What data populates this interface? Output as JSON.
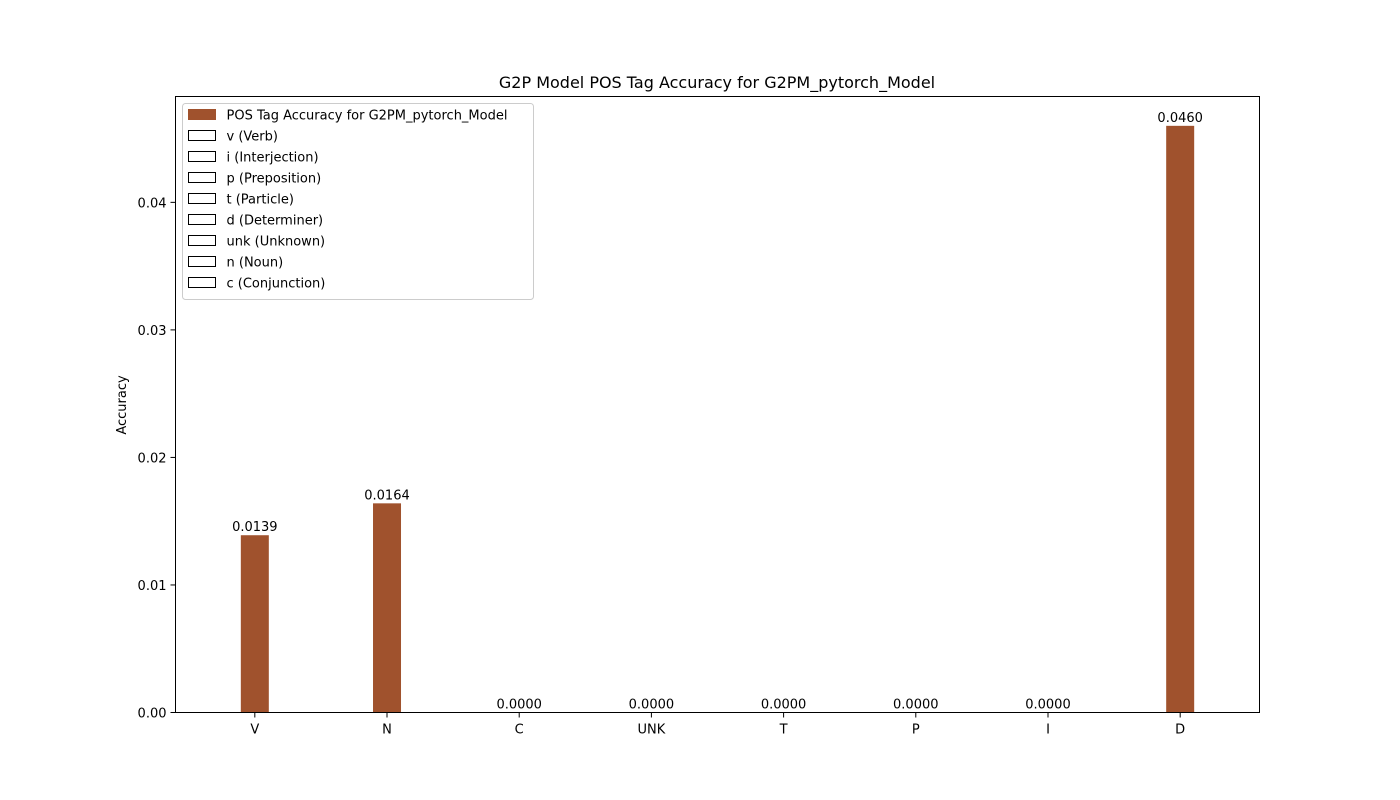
{
  "chart_data": {
    "type": "bar",
    "title": "G2P Model POS Tag Accuracy for G2PM_pytorch_Model",
    "xlabel": "",
    "ylabel": "Accuracy",
    "categories": [
      "V",
      "N",
      "C",
      "UNK",
      "T",
      "P",
      "I",
      "D"
    ],
    "series": [
      {
        "name": "POS Tag Accuracy for G2PM_pytorch_Model",
        "values": [
          0.0139,
          0.0164,
          0.0,
          0.0,
          0.0,
          0.0,
          0.0,
          0.046
        ]
      }
    ],
    "data_labels": [
      "0.0139",
      "0.0164",
      "0.0000",
      "0.0000",
      "0.0000",
      "0.0000",
      "0.0000",
      "0.0460"
    ],
    "ylim": [
      0,
      0.0483
    ],
    "yticks": [
      0.0,
      0.01,
      0.02,
      0.03,
      0.04
    ],
    "ytick_labels": [
      "0.00",
      "0.01",
      "0.02",
      "0.03",
      "0.04"
    ],
    "grid": false,
    "legend": {
      "placement": "top-left",
      "entries": [
        {
          "label": "POS Tag Accuracy for G2PM_pytorch_Model",
          "filled": true
        },
        {
          "label": "v (Verb)",
          "filled": false
        },
        {
          "label": "i (Interjection)",
          "filled": false
        },
        {
          "label": "p (Preposition)",
          "filled": false
        },
        {
          "label": "t (Particle)",
          "filled": false
        },
        {
          "label": "d (Determiner)",
          "filled": false
        },
        {
          "label": "unk (Unknown)",
          "filled": false
        },
        {
          "label": "n (Noun)",
          "filled": false
        },
        {
          "label": "c (Conjunction)",
          "filled": false
        }
      ]
    },
    "colors": {
      "bar": "#a0522d",
      "axis": "#000000",
      "background": "#ffffff"
    }
  }
}
